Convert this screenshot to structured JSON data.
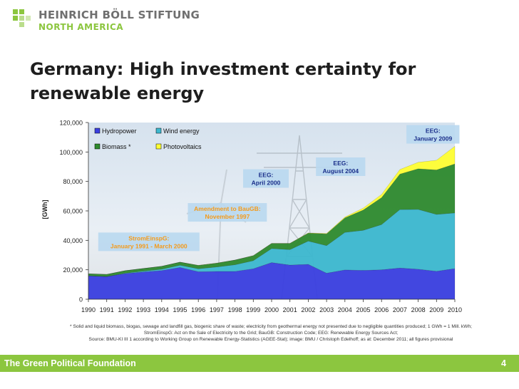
{
  "header": {
    "org_name": "HEINRICH BÖLL STIFTUNG",
    "org_sub": "NORTH AMERICA"
  },
  "slide": {
    "title_line1": "Germany: High investment certainty for",
    "title_line2": "renewable energy"
  },
  "colors": {
    "accent_green": "#8cc63f",
    "hydropower": "#3a3fe0",
    "wind": "#3cb8cf",
    "biomass": "#2e8a2e",
    "photovoltaics": "#ffff33",
    "annotation_box": "#b9d8f0",
    "annotation_text_blue": "#1a2f8a",
    "annotation_text_orange": "#f49a1a"
  },
  "chart_data": {
    "type": "area",
    "stacked": true,
    "title": "",
    "ylabel": "[GWh]",
    "xlabel": "",
    "ylim": [
      0,
      120000
    ],
    "yticks": [
      "0",
      "20,000",
      "40,000",
      "60,000",
      "80,000",
      "100,000",
      "120,000"
    ],
    "x": [
      "1990",
      "1991",
      "1992",
      "1993",
      "1994",
      "1995",
      "1996",
      "1997",
      "1998",
      "1999",
      "2000",
      "2001",
      "2002",
      "2003",
      "2004",
      "2005",
      "2006",
      "2007",
      "2008",
      "2009",
      "2010"
    ],
    "series": [
      {
        "name": "Hydropower",
        "color": "#3a3fe0",
        "values": [
          15900,
          15400,
          17400,
          18500,
          19500,
          21600,
          18700,
          18900,
          18900,
          20700,
          24900,
          23200,
          23700,
          17700,
          19900,
          19600,
          20000,
          21200,
          20400,
          19000,
          20800
        ]
      },
      {
        "name": "Wind energy",
        "color": "#3cb8cf",
        "values": [
          0,
          0,
          300,
          600,
          900,
          1500,
          2000,
          3000,
          4500,
          5500,
          9500,
          10500,
          15800,
          18700,
          25500,
          27200,
          30700,
          39700,
          40600,
          38600,
          37800
        ]
      },
      {
        "name": "Biomass *",
        "color": "#2e8a2e",
        "values": [
          1400,
          1500,
          1700,
          1800,
          2000,
          2100,
          2300,
          2600,
          3200,
          3400,
          3500,
          4200,
          5400,
          8000,
          9900,
          13800,
          18300,
          24100,
          27600,
          30200,
          33300
        ]
      },
      {
        "name": "Photovoltaics",
        "color": "#ffff33",
        "values": [
          0,
          0,
          0,
          0,
          0,
          10,
          20,
          30,
          40,
          50,
          60,
          80,
          160,
          310,
          560,
          1300,
          2200,
          3100,
          4400,
          6600,
          12000
        ]
      }
    ],
    "legend": [
      [
        "Hydropower",
        "Wind energy"
      ],
      [
        "Biomass *",
        "Photovoltaics"
      ]
    ],
    "annotations": [
      {
        "id": "stromeinspg",
        "line1": "StromEinspG:",
        "line2": "January 1991 - March 2000",
        "x": "1994",
        "y": 39000,
        "color": "orange"
      },
      {
        "id": "baugb",
        "line1": "Amendment to BauGB:",
        "line2": "November 1997",
        "x": "1997",
        "y": 59000,
        "color": "orange"
      },
      {
        "id": "eeg2000",
        "line1": "EEG:",
        "line2": "April 2000",
        "x": "2000",
        "y": 82000,
        "color": "blue"
      },
      {
        "id": "eeg2004",
        "line1": "EEG:",
        "line2": "August 2004",
        "x": "2004",
        "y": 90000,
        "color": "blue"
      },
      {
        "id": "eeg2009",
        "line1": "EEG:",
        "line2": "January 2009",
        "x": "2009",
        "y": 112000,
        "color": "blue"
      }
    ]
  },
  "footnotes": {
    "line1": "* Solid and liquid biomass, biogas, sewage and landfill gas, biogenic share of waste; electricity from geothermal energy not presented due to negligible quantities produced; 1 GWh = 1 Mill. kWh;",
    "line2": "StromEinspG: Act on the Sale of Electricity to the Grid; BauGB: Construction Code; EEG: Renewable Energy Sources Act;",
    "line3": "Source: BMU-KI III 1 according to Working Group on Renewable Energy-Statistics (AGEE-Stat); image: BMU / Christoph Edelhoff; as at: December 2011; all figures provisional"
  },
  "footer": {
    "foundation": "The Green Political Foundation",
    "page_number": "4"
  }
}
